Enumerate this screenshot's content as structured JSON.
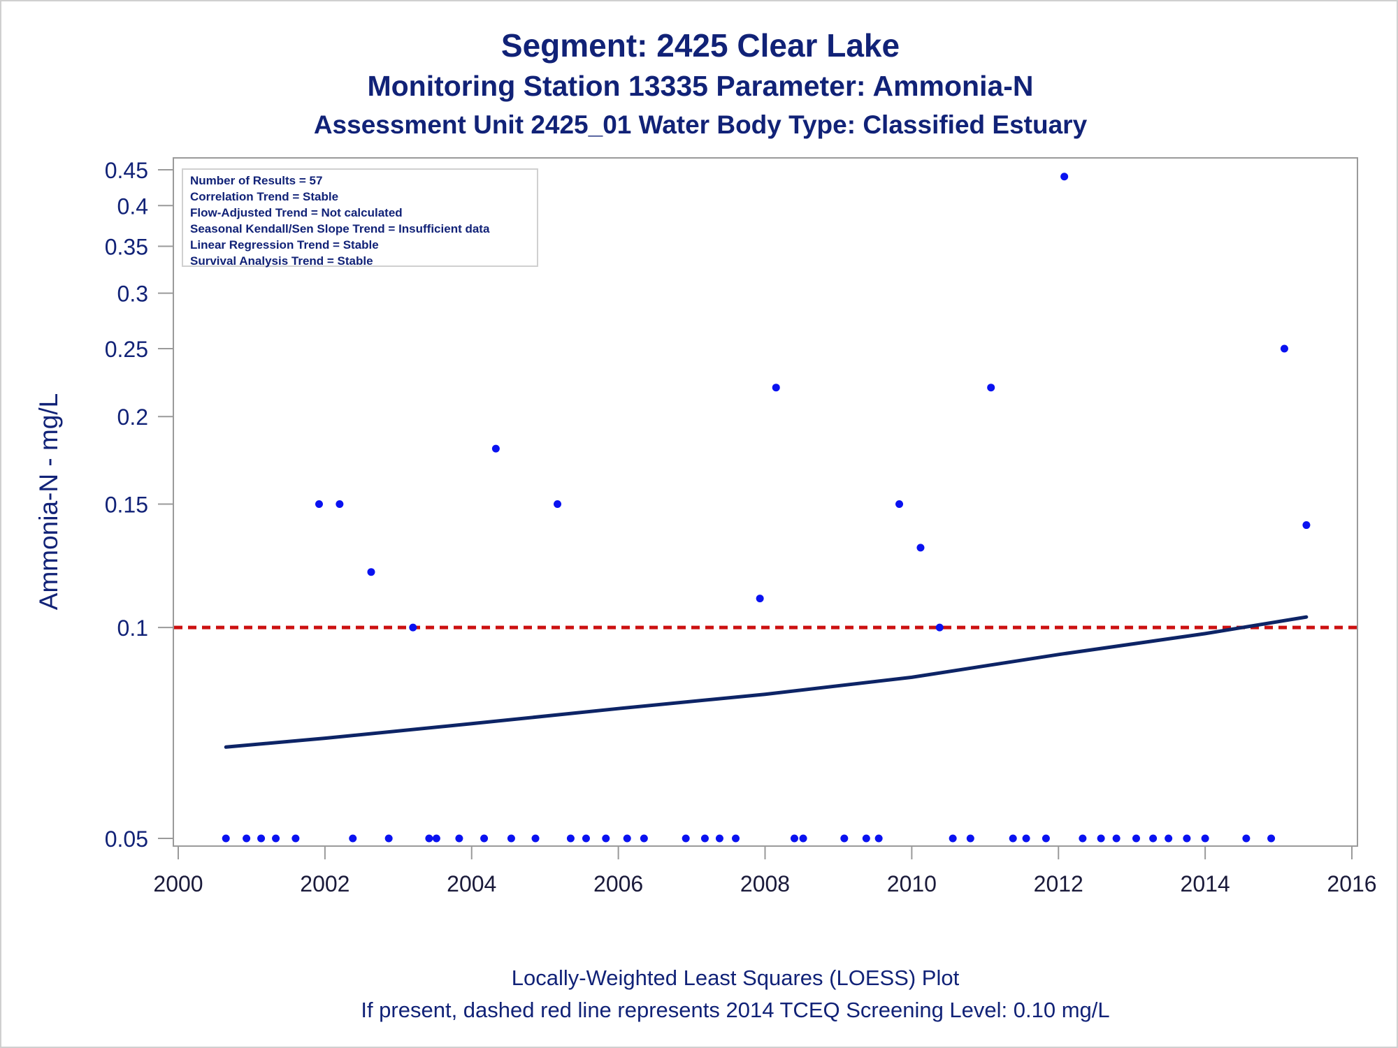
{
  "titles": {
    "line1": "Segment: 2425  Clear Lake",
    "line2": "Monitoring Station 13335 Parameter: Ammonia-N",
    "line3": "Assessment Unit 2425_01   Water Body Type: Classified Estuary"
  },
  "stats_box": [
    "Number of Results = 57",
    "Correlation Trend = Stable",
    "Flow-Adjusted Trend = Not calculated",
    "Seasonal Kendall/Sen Slope Trend = Insufficient data",
    "Linear Regression Trend = Stable",
    "Survival Analysis Trend = Stable"
  ],
  "footer": {
    "line1": "Locally-Weighted Least Squares (LOESS) Plot",
    "line2": "If present, dashed red line represents 2014 TCEQ Screening Level: 0.10 mg/L"
  },
  "colors": {
    "text": "#112277",
    "points": "#0a12f0",
    "loess_line": "#0d2466",
    "screening_line": "#cc1111",
    "axis": "#9a9a9a"
  },
  "chart_data": {
    "type": "scatter",
    "xlabel": "",
    "ylabel": "Ammonia-N - mg/L",
    "y_scale": "log",
    "xlim": [
      2000,
      2016
    ],
    "ylim": [
      0.05,
      0.45
    ],
    "x_ticks": [
      2000,
      2002,
      2004,
      2006,
      2008,
      2010,
      2012,
      2014,
      2016
    ],
    "y_ticks": [
      0.05,
      0.1,
      0.15,
      0.2,
      0.25,
      0.3,
      0.35,
      0.4,
      0.45
    ],
    "x_tick_labels": [
      "2000",
      "2002",
      "2004",
      "2006",
      "2008",
      "2010",
      "2012",
      "2014",
      "2016"
    ],
    "y_tick_labels": [
      "0.05",
      "0.1",
      "0.15",
      "0.2",
      "0.25",
      "0.3",
      "0.35",
      "0.4",
      "0.45"
    ],
    "grid": false,
    "points": [
      {
        "x": 2000.65,
        "y": 0.05
      },
      {
        "x": 2000.93,
        "y": 0.05
      },
      {
        "x": 2001.13,
        "y": 0.05
      },
      {
        "x": 2001.33,
        "y": 0.05
      },
      {
        "x": 2001.6,
        "y": 0.05
      },
      {
        "x": 2001.92,
        "y": 0.15
      },
      {
        "x": 2002.2,
        "y": 0.15
      },
      {
        "x": 2002.38,
        "y": 0.05
      },
      {
        "x": 2002.63,
        "y": 0.12
      },
      {
        "x": 2002.87,
        "y": 0.05
      },
      {
        "x": 2003.2,
        "y": 0.1
      },
      {
        "x": 2003.42,
        "y": 0.05
      },
      {
        "x": 2003.52,
        "y": 0.05
      },
      {
        "x": 2003.83,
        "y": 0.05
      },
      {
        "x": 2004.17,
        "y": 0.05
      },
      {
        "x": 2004.33,
        "y": 0.18
      },
      {
        "x": 2004.54,
        "y": 0.05
      },
      {
        "x": 2004.87,
        "y": 0.05
      },
      {
        "x": 2005.17,
        "y": 0.15
      },
      {
        "x": 2005.35,
        "y": 0.05
      },
      {
        "x": 2005.56,
        "y": 0.05
      },
      {
        "x": 2005.83,
        "y": 0.05
      },
      {
        "x": 2006.12,
        "y": 0.05
      },
      {
        "x": 2006.35,
        "y": 0.05
      },
      {
        "x": 2006.92,
        "y": 0.05
      },
      {
        "x": 2007.18,
        "y": 0.05
      },
      {
        "x": 2007.38,
        "y": 0.05
      },
      {
        "x": 2007.6,
        "y": 0.05
      },
      {
        "x": 2007.93,
        "y": 0.11
      },
      {
        "x": 2008.15,
        "y": 0.22
      },
      {
        "x": 2008.4,
        "y": 0.05
      },
      {
        "x": 2008.52,
        "y": 0.05
      },
      {
        "x": 2009.08,
        "y": 0.05
      },
      {
        "x": 2009.38,
        "y": 0.05
      },
      {
        "x": 2009.55,
        "y": 0.05
      },
      {
        "x": 2009.83,
        "y": 0.15
      },
      {
        "x": 2010.12,
        "y": 0.13
      },
      {
        "x": 2010.38,
        "y": 0.1
      },
      {
        "x": 2010.56,
        "y": 0.05
      },
      {
        "x": 2010.8,
        "y": 0.05
      },
      {
        "x": 2011.08,
        "y": 0.22
      },
      {
        "x": 2011.38,
        "y": 0.05
      },
      {
        "x": 2011.56,
        "y": 0.05
      },
      {
        "x": 2011.83,
        "y": 0.05
      },
      {
        "x": 2012.08,
        "y": 0.44
      },
      {
        "x": 2012.33,
        "y": 0.05
      },
      {
        "x": 2012.58,
        "y": 0.05
      },
      {
        "x": 2012.79,
        "y": 0.05
      },
      {
        "x": 2013.06,
        "y": 0.05
      },
      {
        "x": 2013.29,
        "y": 0.05
      },
      {
        "x": 2013.5,
        "y": 0.05
      },
      {
        "x": 2013.75,
        "y": 0.05
      },
      {
        "x": 2014.0,
        "y": 0.05
      },
      {
        "x": 2014.56,
        "y": 0.05
      },
      {
        "x": 2014.9,
        "y": 0.05
      },
      {
        "x": 2015.08,
        "y": 0.25
      },
      {
        "x": 2015.38,
        "y": 0.14
      }
    ],
    "loess_line": {
      "x": [
        2000.65,
        2002,
        2004,
        2006,
        2008,
        2010,
        2012,
        2014,
        2015.38
      ],
      "y": [
        0.0675,
        0.0695,
        0.0729,
        0.0766,
        0.0803,
        0.0849,
        0.0915,
        0.098,
        0.1035
      ]
    },
    "screening_level": {
      "y": 0.1
    }
  }
}
